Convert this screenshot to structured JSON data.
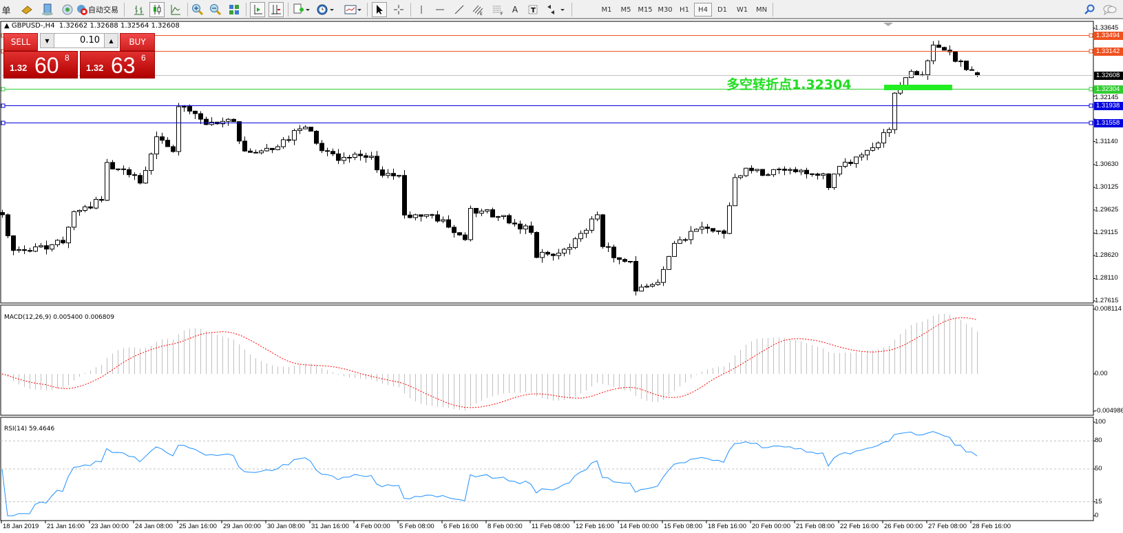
{
  "toolbar": {
    "cut_label": "单",
    "auto_trade_label": "自动交易",
    "timeframes": [
      "M1",
      "M5",
      "M15",
      "M30",
      "H1",
      "H4",
      "D1",
      "W1",
      "MN"
    ],
    "selected_timeframe": "H4"
  },
  "chart": {
    "header": "GBPUSD-,H4  1.32662 1.32688 1.32564 1.32608",
    "symbol": "GBPUSD-",
    "period": "H4",
    "last_bar": {
      "open": 1.32662,
      "high": 1.32688,
      "low": 1.32564,
      "close": 1.32608
    }
  },
  "trade_panel": {
    "sell_label": "SELL",
    "buy_label": "BUY",
    "lots": "0.10",
    "sell_price": {
      "prefix": "1.32",
      "big": "60",
      "sup": "8"
    },
    "buy_price": {
      "prefix": "1.32",
      "big": "63",
      "sup": "6"
    }
  },
  "annotation": {
    "text": "多空转折点1.32304",
    "color": "#22dd22"
  },
  "chart_data": {
    "type": "candlestick",
    "price_axis_ticks": [
      "1.33645",
      "1.32145",
      "1.31635",
      "1.31140",
      "1.30630",
      "1.30125",
      "1.29625",
      "1.29115",
      "1.28620",
      "1.28110",
      "1.27615"
    ],
    "ylim": [
      1.27615,
      1.33645
    ],
    "time_axis_labels": [
      "18 Jan 2019",
      "21 Jan 16:00",
      "23 Jan 00:00",
      "24 Jan 08:00",
      "25 Jan 16:00",
      "29 Jan 00:00",
      "30 Jan 08:00",
      "31 Jan 16:00",
      "4 Feb 00:00",
      "5 Feb 08:00",
      "6 Feb 16:00",
      "8 Feb 00:00",
      "11 Feb 08:00",
      "12 Feb 16:00",
      "14 Feb 00:00",
      "15 Feb 08:00",
      "18 Feb 16:00",
      "20 Feb 00:00",
      "21 Feb 08:00",
      "22 Feb 16:00",
      "26 Feb 00:00",
      "27 Feb 08:00",
      "28 Feb 16:00"
    ],
    "bar_count": 178,
    "close_path": [
      [
        0,
        1.2952
      ],
      [
        2,
        1.2873
      ],
      [
        6,
        1.2881
      ],
      [
        11,
        1.2889
      ],
      [
        13,
        1.296
      ],
      [
        18,
        1.2984
      ],
      [
        19,
        1.3063
      ],
      [
        24,
        1.3039
      ],
      [
        25,
        1.3023
      ],
      [
        28,
        1.3118
      ],
      [
        31,
        1.3095
      ],
      [
        32,
        1.3193
      ],
      [
        34,
        1.319
      ],
      [
        37,
        1.315
      ],
      [
        42,
        1.3158
      ],
      [
        44,
        1.3087
      ],
      [
        49,
        1.3102
      ],
      [
        55,
        1.315
      ],
      [
        57,
        1.311
      ],
      [
        61,
        1.3079
      ],
      [
        67,
        1.3079
      ],
      [
        69,
        1.3039
      ],
      [
        72,
        1.3039
      ],
      [
        73,
        1.2952
      ],
      [
        78,
        1.2952
      ],
      [
        84,
        1.2897
      ],
      [
        85,
        1.2968
      ],
      [
        91,
        1.2944
      ],
      [
        96,
        1.2913
      ],
      [
        97,
        1.2865
      ],
      [
        101,
        1.2865
      ],
      [
        104,
        1.2897
      ],
      [
        108,
        1.2952
      ],
      [
        109,
        1.2889
      ],
      [
        111,
        1.2857
      ],
      [
        114,
        1.2849
      ],
      [
        115,
        1.2786
      ],
      [
        119,
        1.2802
      ],
      [
        122,
        1.2889
      ],
      [
        126,
        1.292
      ],
      [
        131,
        1.2913
      ],
      [
        133,
        1.3031
      ],
      [
        135,
        1.3055
      ],
      [
        138,
        1.3039
      ],
      [
        140,
        1.3055
      ],
      [
        144,
        1.3047
      ],
      [
        149,
        1.3039
      ],
      [
        150,
        1.3012
      ],
      [
        152,
        1.3063
      ],
      [
        158,
        1.3095
      ],
      [
        161,
        1.3142
      ],
      [
        162,
        1.3221
      ],
      [
        165,
        1.3269
      ],
      [
        167,
        1.3253
      ],
      [
        169,
        1.3332
      ],
      [
        171,
        1.3316
      ],
      [
        174,
        1.3292
      ],
      [
        177,
        1.32608
      ]
    ],
    "horizontal_lines": [
      {
        "price": "1.33494",
        "color": "#f0501e"
      },
      {
        "price": "1.33142",
        "color": "#f0501e"
      },
      {
        "price": "1.32608",
        "color": "#000000",
        "kind": "bid"
      },
      {
        "price": "1.32304",
        "color": "#32cd32"
      },
      {
        "price": "1.31938",
        "color": "#0000e0"
      },
      {
        "price": "1.31558",
        "color": "#0000e0"
      }
    ],
    "macd": {
      "label": "MACD(12,26,9) 0.005400 0.006809",
      "params": [
        12,
        26,
        9
      ],
      "axis_labels": [
        "0.008114",
        "0.00",
        "-0.004986"
      ],
      "ylim": [
        -0.004986,
        0.008114
      ],
      "hist_color": "#c0c0c0",
      "signal_color": "#ff0000"
    },
    "rsi": {
      "label": "RSI(14) 59.4646",
      "period": 14,
      "axis_labels": [
        "100",
        "80",
        "50",
        "15",
        "0"
      ],
      "levels": [
        80,
        50,
        15
      ],
      "color": "#1e90ff"
    }
  }
}
